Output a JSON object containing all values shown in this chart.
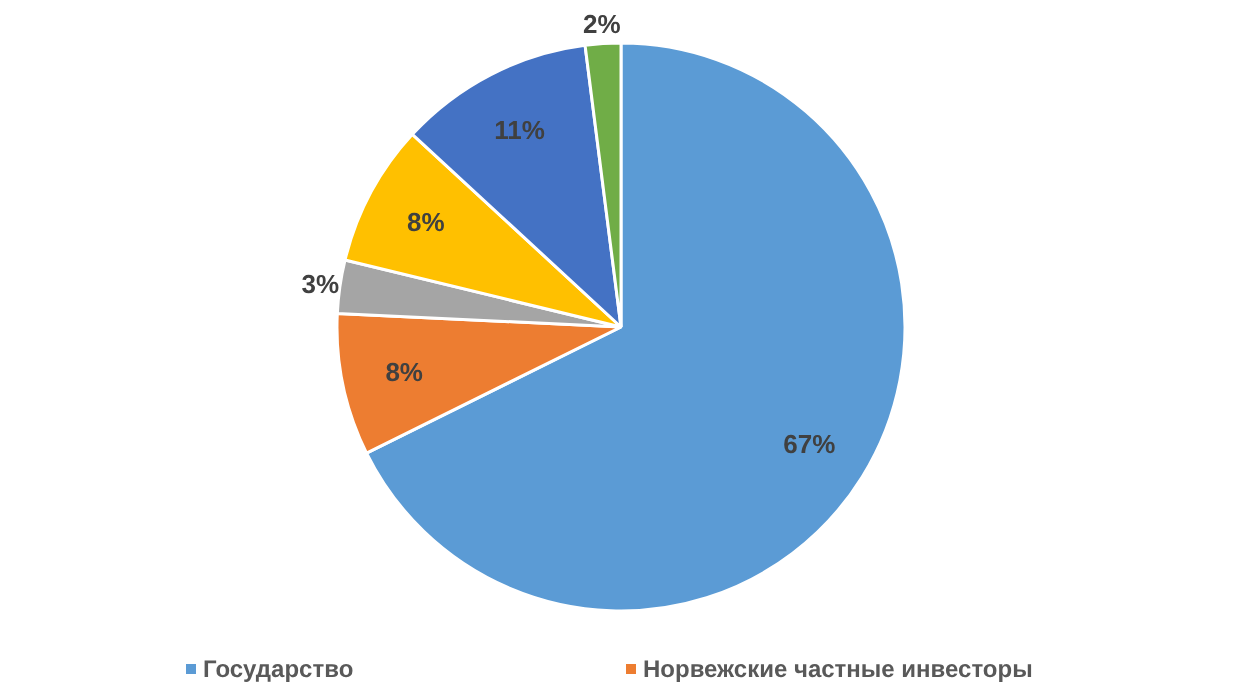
{
  "chart_data": {
    "type": "pie",
    "categories": [
      "Государство",
      "Норвежские частные инвесторы",
      null,
      null,
      null,
      null
    ],
    "values": [
      67,
      8,
      3,
      8,
      11,
      2
    ],
    "colors": [
      "#5b9bd5",
      "#ed7d31",
      "#a5a5a5",
      "#ffc000",
      "#4472c4",
      "#70ad47"
    ],
    "value_labels": [
      "67%",
      "8%",
      "3%",
      "8%",
      "11%",
      "2%"
    ],
    "legend": "bottom"
  }
}
